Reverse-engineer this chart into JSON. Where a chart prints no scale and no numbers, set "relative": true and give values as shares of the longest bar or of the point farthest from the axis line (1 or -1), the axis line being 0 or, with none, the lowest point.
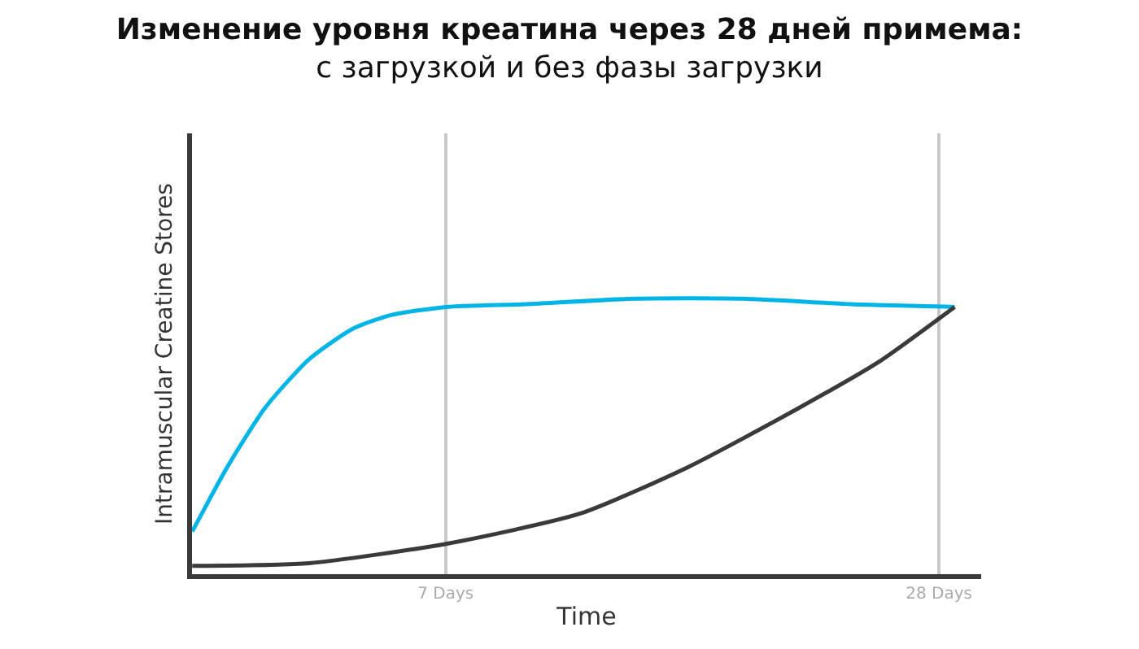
{
  "chart_data": {
    "type": "line",
    "title": "Изменение уровня креатина через 28 дней примема:",
    "subtitle": "с загрузкой и без фазы загрузки",
    "xlabel": "Time",
    "ylabel": "Intramuscular Creatine Stores",
    "relative": true,
    "xlim": [
      -3.8,
      29.8
    ],
    "xticks": [
      {
        "value": 7,
        "label": "7 Days"
      },
      {
        "value": 28,
        "label": "28 Days"
      }
    ],
    "grid": "x",
    "tick_labels": "x",
    "marker": "none",
    "line_style": "solid",
    "series": [
      {
        "color": "#00b4e6",
        "x": [
          -3.79,
          -2.29,
          -0.67,
          1.18,
          3.03,
          4.64,
          7.02,
          10.42,
          15.04,
          19.66,
          24.28,
          28.67
        ],
        "values": [
          0.155,
          0.39,
          0.606,
          0.78,
          0.89,
          0.94,
          0.97,
          0.98,
          1.0,
          1.0,
          0.98,
          0.97
        ]
      },
      {
        "color": "#3a3a3a",
        "x": [
          -3.79,
          1.18,
          7.02,
          12.73,
          17.35,
          21.97,
          25.43,
          28.67
        ],
        "values": [
          0.03,
          0.04,
          0.11,
          0.22,
          0.39,
          0.6,
          0.77,
          0.97
        ]
      }
    ]
  }
}
